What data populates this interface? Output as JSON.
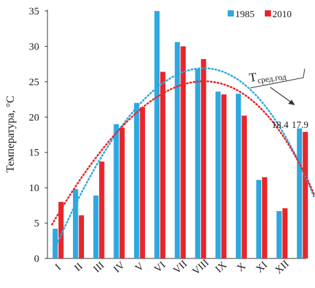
{
  "chart_data": {
    "type": "bar",
    "categories": [
      "I",
      "II",
      "III",
      "IV",
      "V",
      "VI",
      "VII",
      "VIII",
      "IX",
      "X",
      "XI",
      "XII",
      ""
    ],
    "series": [
      {
        "name": "1985",
        "color": "#2ea8e0",
        "values": [
          4.2,
          9.8,
          8.9,
          19.0,
          22.0,
          35.0,
          30.6,
          26.8,
          23.6,
          23.3,
          11.1,
          6.7,
          18.4
        ]
      },
      {
        "name": "2010",
        "color": "#e8262a",
        "values": [
          8.0,
          6.1,
          13.7,
          18.5,
          21.4,
          26.4,
          30.0,
          28.2,
          23.2,
          20.2,
          11.5,
          7.1,
          17.9
        ]
      }
    ],
    "trendlines": [
      {
        "series": "1985",
        "style": "dotted",
        "points": [
          [
            0.0,
            2.4
          ],
          [
            6.7,
            26.8
          ],
          [
            12.6,
            8.5
          ]
        ]
      },
      {
        "series": "2010",
        "style": "dotted",
        "points": [
          [
            -0.3,
            4.8
          ],
          [
            6.8,
            25.0
          ],
          [
            12.6,
            8.9
          ]
        ]
      }
    ],
    "ylabel": "Температура, °С",
    "xlabel": "",
    "ylim": [
      0,
      35
    ],
    "yticks": [
      0,
      5,
      10,
      15,
      20,
      25,
      30,
      35
    ],
    "grid": false,
    "legend_position": "top-right",
    "annotation": {
      "main": "T",
      "subscript": "сред.год",
      "values": [
        "18.4",
        "17.9"
      ]
    }
  }
}
